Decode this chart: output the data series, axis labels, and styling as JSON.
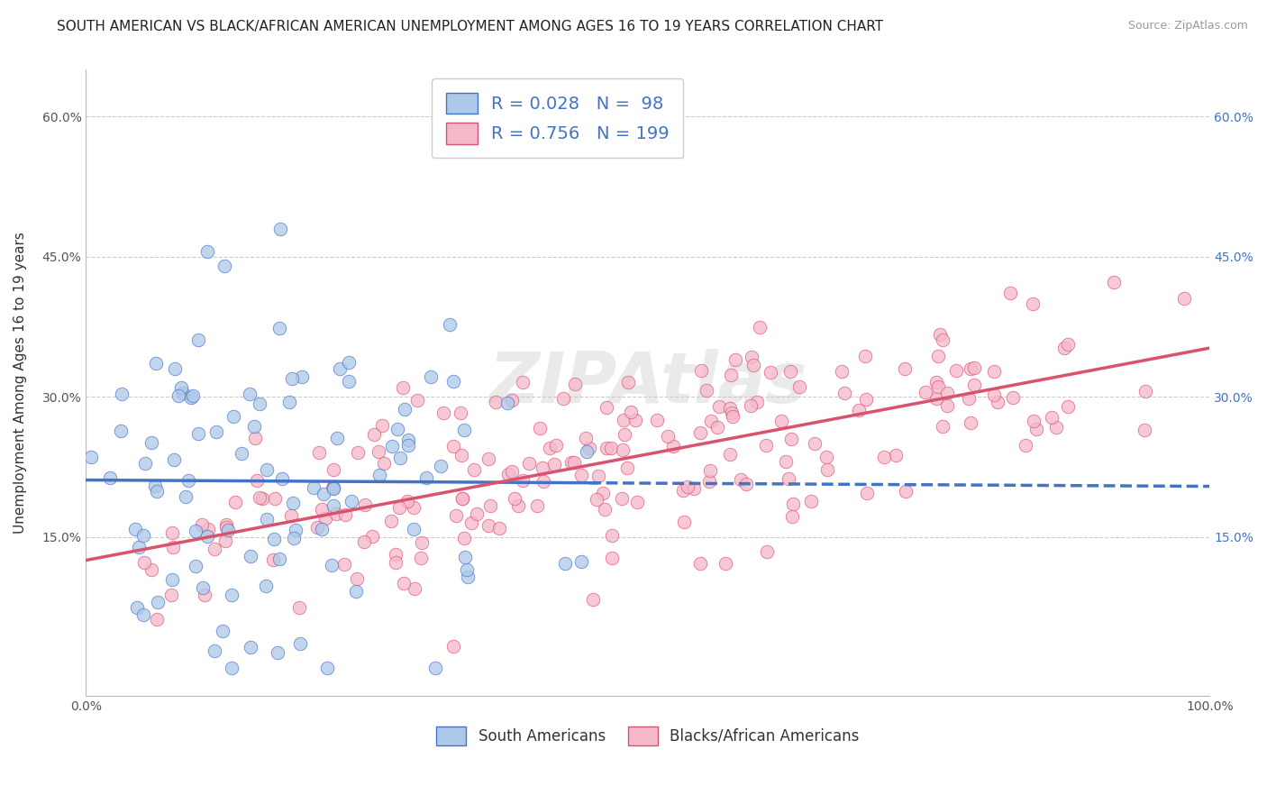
{
  "title": "SOUTH AMERICAN VS BLACK/AFRICAN AMERICAN UNEMPLOYMENT AMONG AGES 16 TO 19 YEARS CORRELATION CHART",
  "source": "Source: ZipAtlas.com",
  "ylabel": "Unemployment Among Ages 16 to 19 years",
  "xlim": [
    0.0,
    1.0
  ],
  "ylim": [
    -0.02,
    0.65
  ],
  "x_ticks": [
    0.0,
    0.1,
    0.2,
    0.3,
    0.4,
    0.5,
    0.6,
    0.7,
    0.8,
    0.9,
    1.0
  ],
  "x_tick_labels": [
    "0.0%",
    "",
    "",
    "",
    "",
    "",
    "",
    "",
    "",
    "",
    "100.0%"
  ],
  "y_ticks": [
    0.15,
    0.3,
    0.45,
    0.6
  ],
  "y_tick_labels": [
    "15.0%",
    "30.0%",
    "45.0%",
    "60.0%"
  ],
  "blue_R": 0.028,
  "blue_N": 98,
  "pink_R": 0.756,
  "pink_N": 199,
  "blue_color": "#adc8e8",
  "blue_line_color": "#4472c4",
  "blue_edge_color": "#4472c4",
  "pink_color": "#f5b8ca",
  "pink_line_color": "#d9526e",
  "pink_edge_color": "#d9526e",
  "legend_label_blue": "South Americans",
  "legend_label_pink": "Blacks/African Americans",
  "watermark": "ZIPAtlas",
  "background_color": "#ffffff",
  "grid_color": "#cccccc",
  "title_fontsize": 11,
  "axis_label_fontsize": 11,
  "tick_fontsize": 10,
  "right_tick_color": "#4472c4"
}
